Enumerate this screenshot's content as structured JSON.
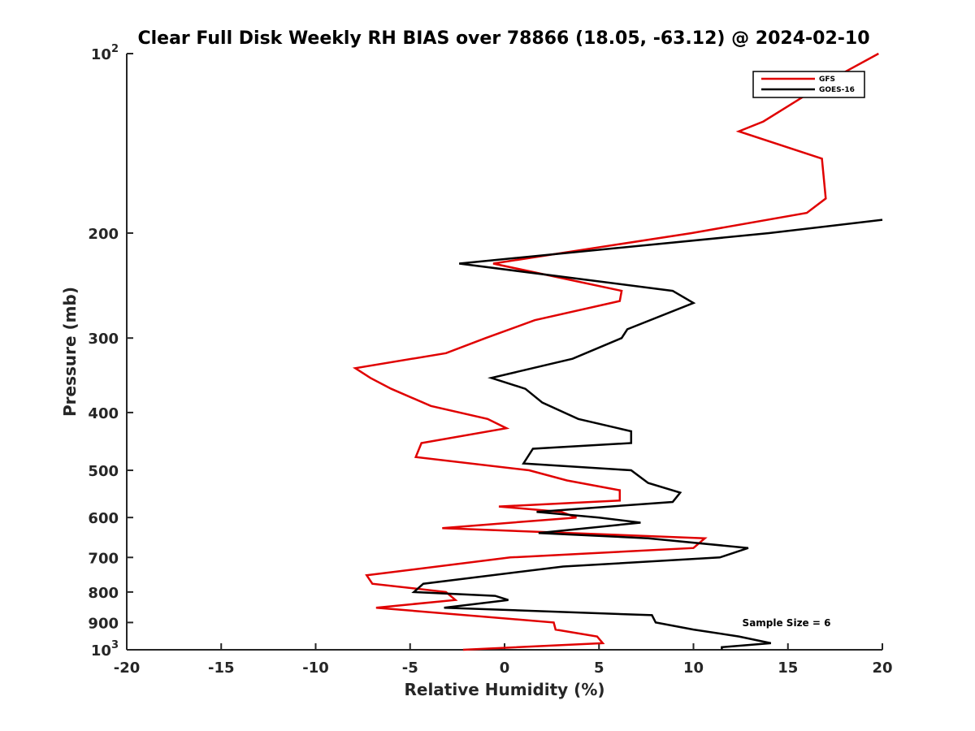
{
  "chart_data": {
    "type": "line",
    "title": "Clear Full Disk Weekly RH BIAS over 78866 (18.05, -63.12) @ 2024-02-10",
    "xlabel": "Relative Humidity (%)",
    "ylabel": "Pressure (mb)",
    "xlim": [
      -20,
      20
    ],
    "ylim": [
      1000,
      100
    ],
    "yscale": "log",
    "yreversed": true,
    "grid": false,
    "legend_position": "top-right",
    "x_ticks": [
      "-20",
      "-15",
      "-10",
      "-5",
      "0",
      "5",
      "10",
      "15",
      "20"
    ],
    "y_ticks": [
      {
        "value": 100,
        "label": "10",
        "sup": "2"
      },
      {
        "value": 200,
        "label": "200"
      },
      {
        "value": 300,
        "label": "300"
      },
      {
        "value": 400,
        "label": "400"
      },
      {
        "value": 500,
        "label": "500"
      },
      {
        "value": 600,
        "label": "600"
      },
      {
        "value": 700,
        "label": "700"
      },
      {
        "value": 800,
        "label": "800"
      },
      {
        "value": 900,
        "label": "900"
      },
      {
        "value": 1000,
        "label": "10",
        "sup": "3"
      }
    ],
    "annotation": "Sample Size = 6",
    "series": [
      {
        "name": "GFS",
        "color": "#e00000",
        "points": [
          [
            -2.2,
            1000
          ],
          [
            5.2,
            975
          ],
          [
            4.9,
            950
          ],
          [
            2.7,
            925
          ],
          [
            2.6,
            900
          ],
          [
            -6.8,
            850
          ],
          [
            -2.6,
            825
          ],
          [
            -3.1,
            800
          ],
          [
            -7.0,
            775
          ],
          [
            -7.3,
            750
          ],
          [
            0.3,
            700
          ],
          [
            10.0,
            675
          ],
          [
            10.6,
            650
          ],
          [
            -3.3,
            625
          ],
          [
            3.8,
            600
          ],
          [
            3.0,
            587
          ],
          [
            -0.3,
            575
          ],
          [
            6.1,
            562
          ],
          [
            6.1,
            540
          ],
          [
            3.3,
            520
          ],
          [
            1.3,
            500
          ],
          [
            -4.7,
            475
          ],
          [
            -4.4,
            450
          ],
          [
            0.1,
            425
          ],
          [
            -0.9,
            410
          ],
          [
            -3.9,
            390
          ],
          [
            -6.0,
            365
          ],
          [
            -7.1,
            350
          ],
          [
            -7.9,
            337
          ],
          [
            -3.1,
            318
          ],
          [
            -1.0,
            300
          ],
          [
            1.6,
            280
          ],
          [
            6.1,
            260
          ],
          [
            6.2,
            250
          ],
          [
            -0.6,
            225
          ],
          [
            9.9,
            200
          ],
          [
            16.0,
            185
          ],
          [
            17.0,
            175
          ],
          [
            16.8,
            150
          ],
          [
            12.4,
            135
          ],
          [
            13.7,
            130
          ],
          [
            16.4,
            115
          ],
          [
            17.4,
            110
          ],
          [
            19.8,
            100
          ]
        ]
      },
      {
        "name": "GOES-16",
        "color": "#000000",
        "points": [
          [
            11.5,
            1000
          ],
          [
            11.5,
            990
          ],
          [
            14.1,
            975
          ],
          [
            12.4,
            950
          ],
          [
            10.0,
            925
          ],
          [
            8.0,
            900
          ],
          [
            7.8,
            875
          ],
          [
            -3.2,
            850
          ],
          [
            0.2,
            825
          ],
          [
            -0.5,
            812
          ],
          [
            -4.8,
            800
          ],
          [
            -4.3,
            775
          ],
          [
            3.1,
            725
          ],
          [
            11.4,
            700
          ],
          [
            12.9,
            675
          ],
          [
            7.6,
            650
          ],
          [
            1.8,
            637
          ],
          [
            7.2,
            612
          ],
          [
            5.0,
            600
          ],
          [
            1.7,
            587
          ],
          [
            8.9,
            565
          ],
          [
            9.3,
            545
          ],
          [
            7.6,
            525
          ],
          [
            6.7,
            500
          ],
          [
            1.0,
            487
          ],
          [
            1.5,
            460
          ],
          [
            6.7,
            450
          ],
          [
            6.7,
            430
          ],
          [
            3.9,
            410
          ],
          [
            2.0,
            385
          ],
          [
            1.1,
            365
          ],
          [
            -0.7,
            350
          ],
          [
            3.6,
            325
          ],
          [
            6.2,
            300
          ],
          [
            6.5,
            290
          ],
          [
            10.0,
            262
          ],
          [
            8.9,
            250
          ],
          [
            -2.4,
            225
          ],
          [
            14.0,
            200
          ],
          [
            20.0,
            190
          ]
        ]
      }
    ]
  }
}
